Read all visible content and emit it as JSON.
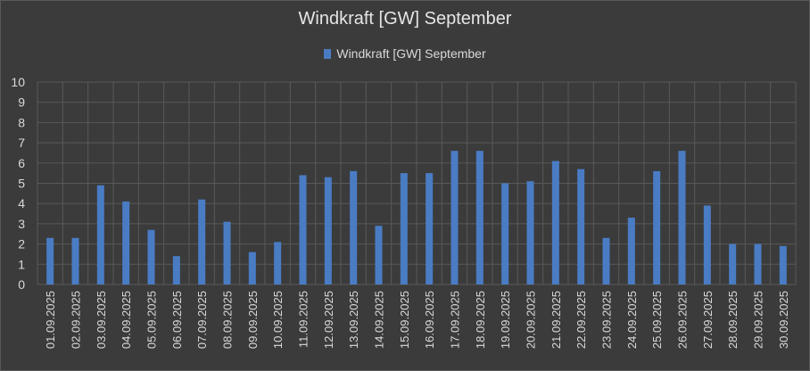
{
  "chart_data": {
    "type": "bar",
    "title": "Windkraft [GW] September",
    "legend": {
      "position": "top",
      "entries": [
        "Windkraft [GW] September"
      ]
    },
    "xlabel": "",
    "ylabel": "",
    "ylim": [
      0,
      10
    ],
    "yticks": [
      "0",
      "1",
      "2",
      "3",
      "4",
      "5",
      "6",
      "7",
      "8",
      "9",
      "10"
    ],
    "grid": true,
    "colors": {
      "bar": "#4a7cc4",
      "grid": "#595959",
      "background": "#3b3b3b"
    },
    "categories": [
      "01.09.2025",
      "02.09.2025",
      "03.09.2025",
      "04.09.2025",
      "05.09.2025",
      "06.09.2025",
      "07.09.2025",
      "08.09.2025",
      "09.09.2025",
      "10.09.2025",
      "11.09.2025",
      "12.09.2025",
      "13.09.2025",
      "14.09.2025",
      "15.09.2025",
      "16.09.2025",
      "17.09.2025",
      "18.09.2025",
      "19.09.2025",
      "20.09.2025",
      "21.09.2025",
      "22.09.2025",
      "23.09.2025",
      "24.09.2025",
      "25.09.2025",
      "26.09.2025",
      "27.09.2025",
      "28.09.2025",
      "29.09.2025",
      "30.09.2025"
    ],
    "series": [
      {
        "name": "Windkraft [GW] September",
        "values": [
          2.3,
          2.3,
          4.9,
          4.1,
          2.7,
          1.4,
          4.2,
          3.1,
          1.6,
          2.1,
          5.4,
          5.3,
          5.6,
          2.9,
          5.5,
          5.5,
          6.6,
          6.6,
          5.0,
          5.1,
          6.1,
          5.7,
          2.3,
          3.3,
          5.6,
          6.6,
          3.9,
          2.0,
          2.0,
          1.9
        ]
      }
    ]
  }
}
